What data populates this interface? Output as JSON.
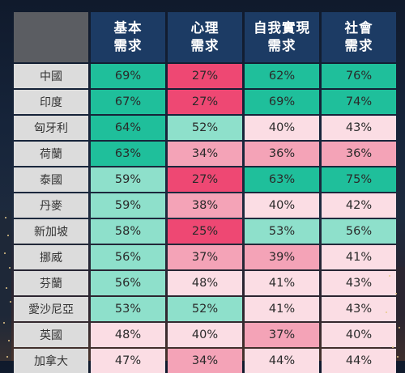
{
  "chart_data": {
    "type": "table",
    "columns": [
      {
        "line1": "基本",
        "line2": "需求"
      },
      {
        "line1": "心理",
        "line2": "需求"
      },
      {
        "line1": "自我實現",
        "line2": "需求"
      },
      {
        "line1": "社會",
        "line2": "需求"
      }
    ],
    "rows": [
      {
        "country": "中國",
        "values": [
          69,
          27,
          62,
          76
        ],
        "labels": [
          "69%",
          "27%",
          "62%",
          "76%"
        ]
      },
      {
        "country": "印度",
        "values": [
          67,
          27,
          69,
          74
        ],
        "labels": [
          "67%",
          "27%",
          "69%",
          "74%"
        ]
      },
      {
        "country": "匈牙利",
        "values": [
          64,
          52,
          40,
          43
        ],
        "labels": [
          "64%",
          "52%",
          "40%",
          "43%"
        ]
      },
      {
        "country": "荷蘭",
        "values": [
          63,
          34,
          36,
          36
        ],
        "labels": [
          "63%",
          "34%",
          "36%",
          "36%"
        ]
      },
      {
        "country": "泰國",
        "values": [
          59,
          27,
          63,
          75
        ],
        "labels": [
          "59%",
          "27%",
          "63%",
          "75%"
        ]
      },
      {
        "country": "丹麥",
        "values": [
          59,
          38,
          40,
          42
        ],
        "labels": [
          "59%",
          "38%",
          "40%",
          "42%"
        ]
      },
      {
        "country": "新加坡",
        "values": [
          58,
          25,
          53,
          56
        ],
        "labels": [
          "58%",
          "25%",
          "53%",
          "56%"
        ]
      },
      {
        "country": "挪威",
        "values": [
          56,
          37,
          39,
          41
        ],
        "labels": [
          "56%",
          "37%",
          "39%",
          "41%"
        ]
      },
      {
        "country": "芬蘭",
        "values": [
          56,
          48,
          41,
          43
        ],
        "labels": [
          "56%",
          "48%",
          "41%",
          "43%"
        ]
      },
      {
        "country": "愛沙尼亞",
        "values": [
          53,
          52,
          41,
          43
        ],
        "labels": [
          "53%",
          "52%",
          "41%",
          "43%"
        ]
      },
      {
        "country": "英國",
        "values": [
          48,
          40,
          37,
          40
        ],
        "labels": [
          "48%",
          "40%",
          "37%",
          "40%"
        ]
      },
      {
        "country": "加拿大",
        "values": [
          47,
          34,
          44,
          44
        ],
        "labels": [
          "47%",
          "34%",
          "44%",
          "44%"
        ]
      }
    ],
    "color_scale": {
      "high": "#1fbf9b",
      "mid_high": "#8ee0cb",
      "mid": "#fbdde4",
      "mid_low": "#f4a3b7",
      "low": "#ee4873"
    }
  }
}
